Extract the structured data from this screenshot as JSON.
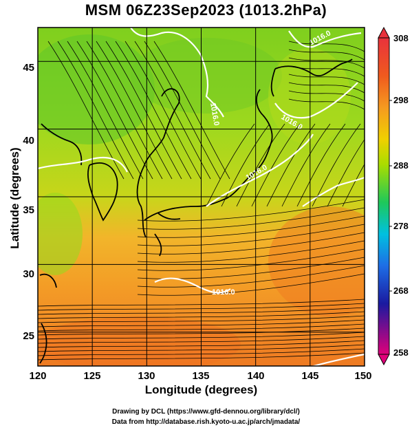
{
  "title": "MSM 06Z23Sep2023 (1013.2hPa)",
  "axes": {
    "xlabel": "Longitude (degrees)",
    "ylabel": "Latitude  (degrees)",
    "x_ticks": [
      "120",
      "125",
      "130",
      "135",
      "140",
      "145",
      "150"
    ],
    "y_ticks": [
      "25",
      "30",
      "35",
      "40",
      "45"
    ],
    "xlim": [
      120,
      150
    ],
    "ylim": [
      22.5,
      47.5
    ]
  },
  "colorbar": {
    "labels": [
      "308",
      "298",
      "288",
      "278",
      "268",
      "258"
    ],
    "range": [
      258,
      308
    ],
    "colors": [
      "#e0007a",
      "#1a1aa0",
      "#1e6ee6",
      "#00c0e0",
      "#1ec85a",
      "#aadd00",
      "#f0d000",
      "#f59a20",
      "#f05a1e",
      "#e8323c"
    ]
  },
  "isobars": {
    "color": "#ffffff",
    "labels": [
      "1016.0",
      "1016.0",
      "1016.0",
      "1016.0",
      "1016.0"
    ]
  },
  "credits": {
    "line1": "Drawing by DCL (https://www.gfd-dennou.org/library/dcl/)",
    "line2": "Data from http://database.rish.kyoto-u.ac.jp/arch/jmadata/"
  }
}
